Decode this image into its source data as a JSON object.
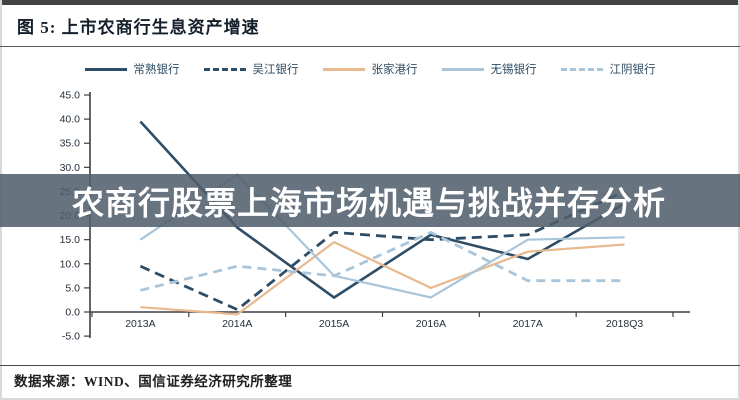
{
  "header": {
    "title": "图 5:  上市农商行生息资产增速"
  },
  "overlay": {
    "title": "农商行股票上海市场机遇与挑战并存分析"
  },
  "footer": {
    "source": "数据来源：WIND、国信证券经济研究所整理"
  },
  "colors": {
    "navy": "#2e4d66",
    "orange": "#e8b88e",
    "pale_blue": "#a8c5d9",
    "axis": "#3a3f45",
    "tick_label": "#26303a",
    "banner_bg": "rgba(80,94,108,0.87)",
    "banner_text": "#ffffff"
  },
  "chart_data": {
    "type": "line",
    "title": "上市农商行生息资产增速",
    "categories": [
      "2013A",
      "2014A",
      "2015A",
      "2016A",
      "2017A",
      "2018Q3"
    ],
    "series": [
      {
        "name": "常熟银行",
        "color_key": "navy",
        "dashed": false,
        "values": [
          39.5,
          17.5,
          3.0,
          16.0,
          11.0,
          22.5
        ]
      },
      {
        "name": "吴江银行",
        "color_key": "navy",
        "dashed": true,
        "values": [
          9.5,
          0.5,
          16.5,
          15.0,
          16.0,
          25.0
        ]
      },
      {
        "name": "张家港行",
        "color_key": "orange",
        "dashed": false,
        "values": [
          1.0,
          -0.5,
          14.5,
          5.0,
          12.5,
          14.0
        ]
      },
      {
        "name": "无锡银行",
        "color_key": "pale_blue",
        "dashed": false,
        "values": [
          15.0,
          28.5,
          7.5,
          3.0,
          15.0,
          15.5
        ]
      },
      {
        "name": "江阴银行",
        "color_key": "pale_blue",
        "dashed": true,
        "values": [
          4.5,
          9.5,
          7.5,
          16.5,
          6.5,
          6.5
        ]
      }
    ],
    "ylim": [
      -5.0,
      45.0
    ],
    "ytick_step": 5.0,
    "ytick_labels": [
      "45.0",
      "40.0",
      "35.0",
      "30.0",
      "25.0",
      "20.0",
      "15.0",
      "10.0",
      "5.0",
      "0.0",
      "-5.0"
    ],
    "xlabel": "",
    "ylabel": "",
    "grid": false,
    "legend_position": "top"
  }
}
